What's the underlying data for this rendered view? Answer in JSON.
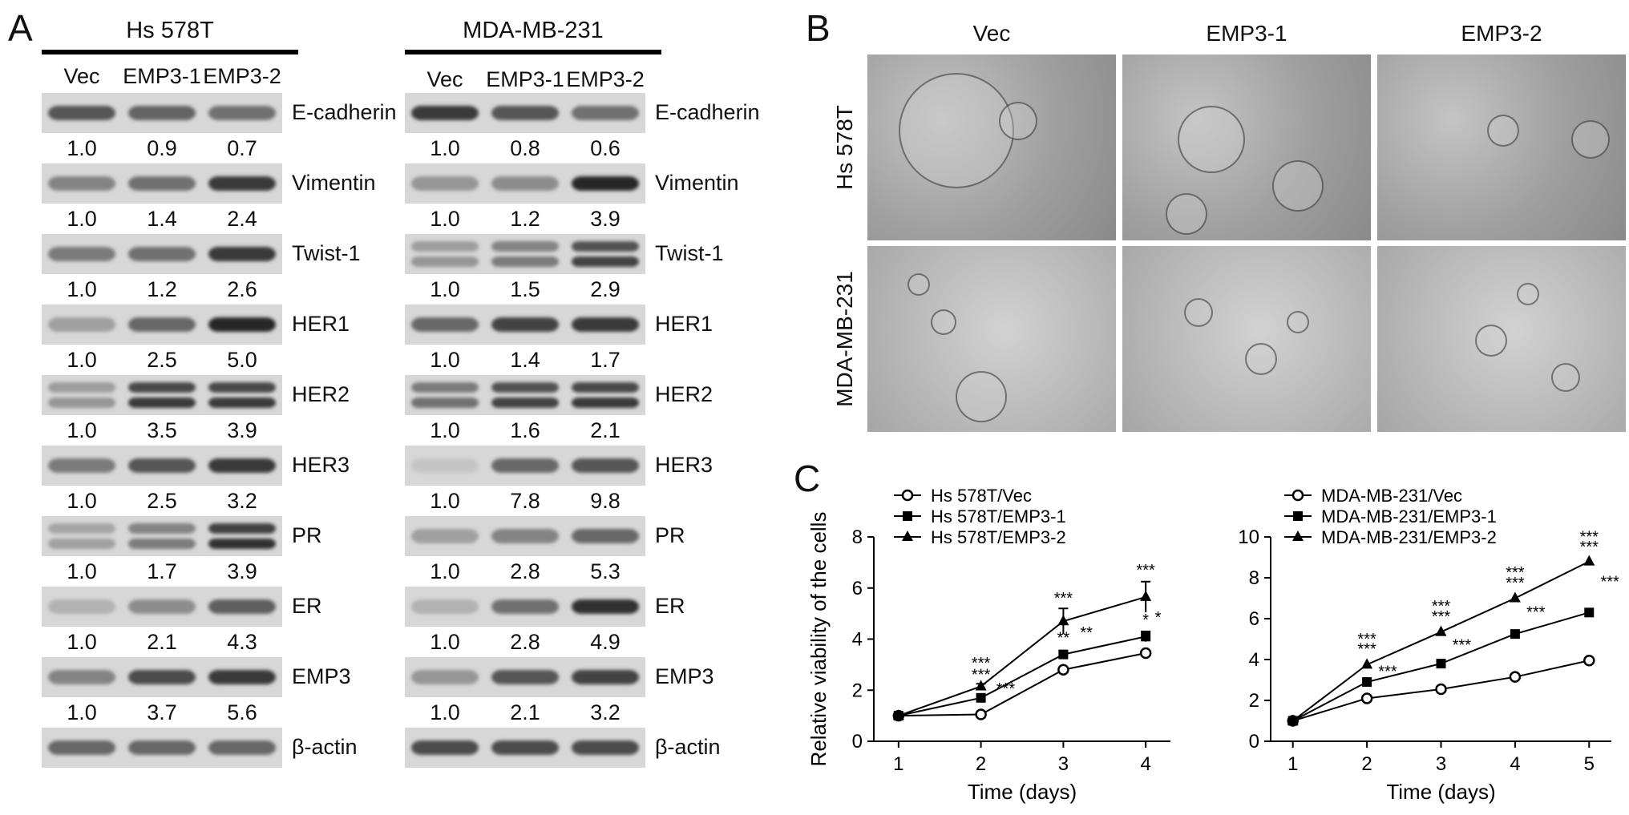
{
  "panel_labels": {
    "a": "A",
    "b": "B",
    "c": "C"
  },
  "panel_a": {
    "blots": [
      {
        "cell_line": "Hs 578T",
        "lanes": [
          "Vec",
          "EMP3-1",
          "EMP3-2"
        ],
        "rows": [
          {
            "protein": "E-cadherin",
            "values": [
              "1.0",
              "0.9",
              "0.7"
            ],
            "intensity": [
              0.7,
              0.62,
              0.55
            ],
            "double": false
          },
          {
            "protein": "Vimentin",
            "values": [
              "1.0",
              "1.4",
              "2.4"
            ],
            "intensity": [
              0.45,
              0.55,
              0.85
            ],
            "double": false
          },
          {
            "protein": "Twist-1",
            "values": [
              "1.0",
              "1.2",
              "2.6"
            ],
            "intensity": [
              0.5,
              0.55,
              0.85
            ],
            "double": false
          },
          {
            "protein": "HER1",
            "values": [
              "1.0",
              "2.5",
              "5.0"
            ],
            "intensity": [
              0.3,
              0.6,
              0.95
            ],
            "double": false
          },
          {
            "protein": "HER2",
            "values": [
              "1.0",
              "3.5",
              "3.9"
            ],
            "intensity": [
              0.35,
              0.85,
              0.85
            ],
            "double": true
          },
          {
            "protein": "HER3",
            "values": [
              "1.0",
              "2.5",
              "3.2"
            ],
            "intensity": [
              0.5,
              0.7,
              0.85
            ],
            "double": false
          },
          {
            "protein": "PR",
            "values": [
              "1.0",
              "1.7",
              "3.9"
            ],
            "intensity": [
              0.3,
              0.5,
              0.9
            ],
            "double": true
          },
          {
            "protein": "ER",
            "values": [
              "1.0",
              "2.1",
              "4.3"
            ],
            "intensity": [
              0.2,
              0.4,
              0.65
            ],
            "double": false
          },
          {
            "protein": "EMP3",
            "values": [
              "1.0",
              "3.7",
              "5.6"
            ],
            "intensity": [
              0.45,
              0.75,
              0.85
            ],
            "double": false
          },
          {
            "protein": "β-actin",
            "values": [],
            "intensity": [
              0.6,
              0.6,
              0.6
            ],
            "double": false
          }
        ]
      },
      {
        "cell_line": "MDA-MB-231",
        "lanes": [
          "Vec",
          "EMP3-1",
          "EMP3-2"
        ],
        "rows": [
          {
            "protein": "E-cadherin",
            "values": [
              "1.0",
              "0.8",
              "0.6"
            ],
            "intensity": [
              0.85,
              0.7,
              0.55
            ],
            "double": false
          },
          {
            "protein": "Vimentin",
            "values": [
              "1.0",
              "1.2",
              "3.9"
            ],
            "intensity": [
              0.35,
              0.4,
              0.95
            ],
            "double": false
          },
          {
            "protein": "Twist-1",
            "values": [
              "1.0",
              "1.5",
              "2.9"
            ],
            "intensity": [
              0.35,
              0.5,
              0.8
            ],
            "double": true
          },
          {
            "protein": "HER1",
            "values": [
              "1.0",
              "1.4",
              "1.7"
            ],
            "intensity": [
              0.6,
              0.8,
              0.85
            ],
            "double": false
          },
          {
            "protein": "HER2",
            "values": [
              "1.0",
              "1.6",
              "2.1"
            ],
            "intensity": [
              0.55,
              0.8,
              0.85
            ],
            "double": true
          },
          {
            "protein": "HER3",
            "values": [
              "1.0",
              "7.8",
              "9.8"
            ],
            "intensity": [
              0.1,
              0.6,
              0.7
            ],
            "double": false
          },
          {
            "protein": "PR",
            "values": [
              "1.0",
              "2.8",
              "5.3"
            ],
            "intensity": [
              0.3,
              0.45,
              0.6
            ],
            "double": false
          },
          {
            "protein": "ER",
            "values": [
              "1.0",
              "2.8",
              "4.9"
            ],
            "intensity": [
              0.2,
              0.55,
              0.9
            ],
            "double": false
          },
          {
            "protein": "EMP3",
            "values": [
              "1.0",
              "2.1",
              "3.2"
            ],
            "intensity": [
              0.35,
              0.7,
              0.8
            ],
            "double": false
          },
          {
            "protein": "β-actin",
            "values": [],
            "intensity": [
              0.75,
              0.75,
              0.75
            ],
            "double": false
          }
        ]
      }
    ]
  },
  "panel_b": {
    "columns": [
      "Vec",
      "EMP3-1",
      "EMP3-2"
    ],
    "rows": [
      "Hs 578T",
      "MDA-MB-231"
    ]
  },
  "chart_data": [
    {
      "type": "line",
      "title": "",
      "xlabel": "Time (days)",
      "ylabel": "Relative viability of the cells",
      "x": [
        1,
        2,
        3,
        4
      ],
      "xlim": [
        0.7,
        4.3
      ],
      "ylim": [
        0,
        8
      ],
      "yticks": [
        0,
        2,
        4,
        6,
        8
      ],
      "legend_position": "top-left",
      "series": [
        {
          "name": "Hs 578T/Vec",
          "marker": "circle-open",
          "values": [
            1.0,
            1.05,
            2.8,
            3.45
          ],
          "errors": [
            0,
            0,
            0,
            0.1
          ]
        },
        {
          "name": "Hs 578T/EMP3-1",
          "marker": "square",
          "values": [
            1.0,
            1.7,
            3.4,
            4.1
          ],
          "errors": [
            0,
            0.1,
            0.1,
            0.2
          ]
        },
        {
          "name": "Hs 578T/EMP3-2",
          "marker": "triangle",
          "values": [
            1.0,
            2.15,
            4.7,
            5.65
          ],
          "errors": [
            0,
            0.1,
            0.5,
            0.6
          ]
        }
      ],
      "annotations": [
        {
          "x": 2,
          "y": 2.85,
          "text": "***"
        },
        {
          "x": 2,
          "y": 2.4,
          "text": "***"
        },
        {
          "x": 2.3,
          "y": 1.85,
          "text": "***"
        },
        {
          "x": 3,
          "y": 5.4,
          "text": "***"
        },
        {
          "x": 3,
          "y": 3.85,
          "text": "**"
        },
        {
          "x": 3.28,
          "y": 4.05,
          "text": "**"
        },
        {
          "x": 4,
          "y": 6.5,
          "text": "***"
        },
        {
          "x": 4,
          "y": 4.55,
          "text": "*"
        },
        {
          "x": 4.15,
          "y": 4.65,
          "text": "*"
        }
      ]
    },
    {
      "type": "line",
      "title": "",
      "xlabel": "Time (days)",
      "ylabel": "",
      "x": [
        1,
        2,
        3,
        4,
        5
      ],
      "xlim": [
        0.7,
        5.3
      ],
      "ylim": [
        0,
        10
      ],
      "yticks": [
        0,
        2,
        4,
        6,
        8,
        10
      ],
      "legend_position": "top-left",
      "series": [
        {
          "name": "MDA-MB-231/Vec",
          "marker": "circle-open",
          "values": [
            1.0,
            2.1,
            2.55,
            3.15,
            3.95
          ],
          "errors": [
            0,
            0,
            0,
            0,
            0
          ]
        },
        {
          "name": "MDA-MB-231/EMP3-1",
          "marker": "square",
          "values": [
            1.0,
            2.9,
            3.8,
            5.25,
            6.3
          ],
          "errors": [
            0,
            0,
            0,
            0,
            0
          ]
        },
        {
          "name": "MDA-MB-231/EMP3-2",
          "marker": "triangle",
          "values": [
            1.0,
            3.75,
            5.35,
            7.0,
            8.8
          ],
          "errors": [
            0,
            0,
            0,
            0,
            0
          ]
        }
      ],
      "annotations": [
        {
          "x": 2,
          "y": 4.75,
          "text": "***"
        },
        {
          "x": 2,
          "y": 4.25,
          "text": "***"
        },
        {
          "x": 2.28,
          "y": 3.15,
          "text": "***"
        },
        {
          "x": 3,
          "y": 6.35,
          "text": "***"
        },
        {
          "x": 3,
          "y": 5.85,
          "text": "***"
        },
        {
          "x": 3.28,
          "y": 4.45,
          "text": "***"
        },
        {
          "x": 4,
          "y": 8.0,
          "text": "***"
        },
        {
          "x": 4,
          "y": 7.5,
          "text": "***"
        },
        {
          "x": 4.28,
          "y": 6.05,
          "text": "***"
        },
        {
          "x": 5,
          "y": 9.75,
          "text": "***"
        },
        {
          "x": 5,
          "y": 9.25,
          "text": "***"
        },
        {
          "x": 5.28,
          "y": 7.55,
          "text": "***"
        }
      ]
    }
  ]
}
